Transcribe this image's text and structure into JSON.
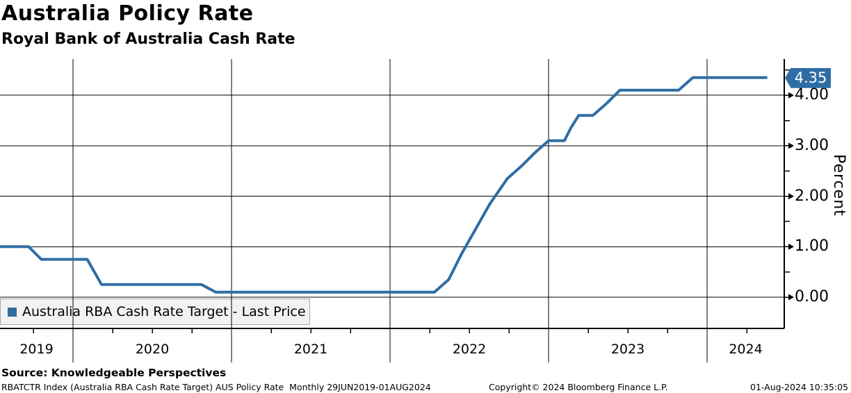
{
  "header": {
    "title": "Australia Policy Rate",
    "subtitle": "Royal Bank of Australia Cash Rate"
  },
  "legend": {
    "label": "Australia RBA Cash Rate Target - Last Price",
    "swatch_color": "#2E6DA4"
  },
  "y_axis": {
    "title": "Percent",
    "major_ticks": [
      {
        "label": "4.00",
        "value": 4.0
      },
      {
        "label": "3.00",
        "value": 3.0
      },
      {
        "label": "2.00",
        "value": 2.0
      },
      {
        "label": "1.00",
        "value": 1.0
      },
      {
        "label": "0.00",
        "value": 0.0
      }
    ],
    "minor_tick_values": [
      0.5,
      1.5,
      2.5,
      3.5,
      4.5
    ],
    "last_price_tag": {
      "text": "4.35",
      "value": 4.35,
      "color": "#2E6DA4"
    }
  },
  "x_axis": {
    "year_labels": [
      "2019",
      "2020",
      "2021",
      "2022",
      "2023",
      "2024"
    ]
  },
  "footer": {
    "source": "Source: Knowledgeable Perspectives",
    "meta": "RBATCTR Index (Australia RBA Cash Rate Target) AUS Policy Rate  Monthly 29JUN2019-01AUG2024",
    "copyright": "Copyright© 2024 Bloomberg Finance L.P.",
    "timestamp": "01-Aug-2024 10:35:05"
  },
  "chart_data": {
    "type": "line",
    "title": "Australia Policy Rate",
    "subtitle": "Royal Bank of Australia Cash Rate",
    "series_name": "Australia RBA Cash Rate Target - Last Price",
    "ylabel": "Percent",
    "ylim": [
      -0.62,
      4.72
    ],
    "x_range": [
      "29JUN2019",
      "01AUG2024"
    ],
    "frequency": "Monthly",
    "grid": true,
    "legend_position": "bottom-left",
    "line_color": "#2E6DA4",
    "last_value": 4.35,
    "points": [
      [
        2019.54,
        1.0
      ],
      [
        2019.72,
        1.0
      ],
      [
        2019.8,
        0.75
      ],
      [
        2020.09,
        0.75
      ],
      [
        2020.18,
        0.25
      ],
      [
        2020.81,
        0.25
      ],
      [
        2020.9,
        0.1
      ],
      [
        2022.28,
        0.1
      ],
      [
        2022.37,
        0.35
      ],
      [
        2022.45,
        0.85
      ],
      [
        2022.54,
        1.35
      ],
      [
        2022.63,
        1.85
      ],
      [
        2022.74,
        2.35
      ],
      [
        2022.83,
        2.6
      ],
      [
        2022.91,
        2.85
      ],
      [
        2023.0,
        3.1
      ],
      [
        2023.1,
        3.1
      ],
      [
        2023.14,
        3.35
      ],
      [
        2023.19,
        3.6
      ],
      [
        2023.28,
        3.6
      ],
      [
        2023.37,
        3.85
      ],
      [
        2023.45,
        4.1
      ],
      [
        2023.82,
        4.1
      ],
      [
        2023.91,
        4.35
      ],
      [
        2024.38,
        4.35
      ]
    ]
  }
}
